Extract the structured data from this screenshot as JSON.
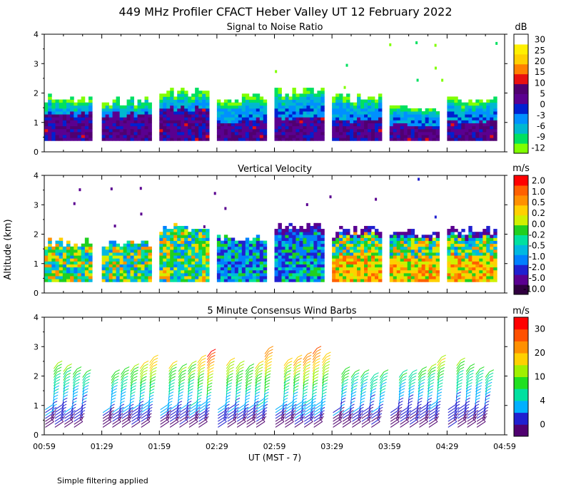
{
  "title": "449 MHz Profiler CFACT Heber Valley UT 12 February 2022",
  "footnote": "Simple filtering applied",
  "y_axis_label": "Altitude (km)",
  "x_axis_label": "UT  (MST - 7)",
  "x_tick_labels": [
    "00:59",
    "01:29",
    "01:59",
    "02:29",
    "02:59",
    "03:29",
    "03:59",
    "04:29",
    "04:59"
  ],
  "colors": {
    "snr": [
      "#80ff00",
      "#00e060",
      "#00b8d0",
      "#0090ff",
      "#0020d0",
      "#5a0090",
      "#500070",
      "#e81010",
      "#ff8000",
      "#ffd000",
      "#fff000",
      "#ffffff"
    ],
    "velocity": [
      "#300040",
      "#5a0090",
      "#2020d0",
      "#0080ff",
      "#00b8e0",
      "#00e0a0",
      "#20d020",
      "#d0f000",
      "#ffd000",
      "#ff9000",
      "#ff6000",
      "#ff0000"
    ],
    "wind": [
      "#500070",
      "#2020d0",
      "#00b0ff",
      "#00e0a0",
      "#20e020",
      "#a0f000",
      "#ffd000",
      "#ff9000",
      "#ff5000",
      "#ff0000"
    ]
  },
  "chart_data": [
    {
      "name": "snr",
      "type": "heatmap",
      "title": "Signal to Noise Ratio",
      "ylabel": "Altitude (km)",
      "ylim": [
        0,
        4
      ],
      "y_ticks": [
        0,
        1,
        2,
        3,
        4
      ],
      "x_range_minutes": [
        0,
        240
      ],
      "colorbar_unit": "dB",
      "colorbar_labels": [
        "30",
        "25",
        "20",
        "15",
        "10",
        "5",
        "0",
        "-3",
        "-6",
        "-9",
        "-12"
      ],
      "blocks": [
        {
          "start_min": 0,
          "end_min": 25,
          "top_km": 1.75
        },
        {
          "start_min": 30,
          "end_min": 56,
          "top_km": 1.7
        },
        {
          "start_min": 60,
          "end_min": 86,
          "top_km": 2.0
        },
        {
          "start_min": 90,
          "end_min": 116,
          "top_km": 1.8
        },
        {
          "start_min": 120,
          "end_min": 146,
          "top_km": 2.0
        },
        {
          "start_min": 150,
          "end_min": 176,
          "top_km": 1.8
        },
        {
          "start_min": 180,
          "end_min": 206,
          "top_km": 1.5
        },
        {
          "start_min": 210,
          "end_min": 236,
          "top_km": 1.75
        }
      ]
    },
    {
      "name": "velocity",
      "type": "heatmap",
      "title": "Vertical Velocity",
      "ylabel": "Altitude (km)",
      "ylim": [
        0,
        4
      ],
      "y_ticks": [
        0,
        1,
        2,
        3,
        4
      ],
      "x_range_minutes": [
        0,
        240
      ],
      "colorbar_unit": "m/s",
      "colorbar_labels": [
        "2.0",
        "1.0",
        "0.5",
        "0.2",
        "0.0",
        "-0.2",
        "-0.5",
        "-1.0",
        "-2.0",
        "-5.0",
        "-10.0"
      ],
      "blocks": [
        {
          "start_min": 0,
          "end_min": 25,
          "top_km": 1.7
        },
        {
          "start_min": 30,
          "end_min": 56,
          "top_km": 1.65
        },
        {
          "start_min": 60,
          "end_min": 86,
          "top_km": 2.2
        },
        {
          "start_min": 90,
          "end_min": 116,
          "top_km": 1.8
        },
        {
          "start_min": 120,
          "end_min": 146,
          "top_km": 2.2
        },
        {
          "start_min": 150,
          "end_min": 176,
          "top_km": 2.1
        },
        {
          "start_min": 180,
          "end_min": 206,
          "top_km": 2.1
        },
        {
          "start_min": 210,
          "end_min": 236,
          "top_km": 2.1
        }
      ]
    },
    {
      "name": "wind",
      "type": "scatter",
      "title": "5 Minute Consensus Wind Barbs",
      "ylabel": "Altitude (km)",
      "ylim": [
        0,
        4
      ],
      "y_ticks": [
        0,
        1,
        2,
        3,
        4
      ],
      "x_range_minutes": [
        0,
        240
      ],
      "colorbar_unit": "m/s",
      "colorbar_labels": [
        "30",
        "20",
        "10",
        "4",
        "0"
      ],
      "barb_times_min": [
        5,
        10,
        15,
        20,
        35,
        40,
        45,
        50,
        55,
        65,
        70,
        75,
        80,
        85,
        95,
        100,
        105,
        110,
        115,
        125,
        130,
        135,
        140,
        145,
        155,
        160,
        165,
        170,
        175,
        185,
        190,
        195,
        200,
        205,
        215,
        220,
        225,
        230
      ],
      "barb_top_km": [
        2.3,
        2.2,
        2.1,
        2.0,
        2.0,
        2.1,
        2.2,
        2.3,
        2.5,
        2.3,
        2.2,
        2.3,
        2.5,
        2.7,
        2.4,
        2.3,
        2.2,
        2.3,
        2.8,
        2.4,
        2.5,
        2.6,
        2.8,
        2.6,
        2.1,
        2.0,
        2.0,
        1.9,
        2.0,
        2.0,
        2.0,
        2.1,
        2.2,
        2.5,
        2.4,
        2.2,
        2.1,
        2.0
      ],
      "barb_peak_speed_ms": [
        18,
        16,
        15,
        14,
        15,
        16,
        18,
        22,
        24,
        20,
        18,
        19,
        24,
        30,
        22,
        20,
        18,
        20,
        28,
        22,
        24,
        26,
        28,
        24,
        16,
        14,
        14,
        13,
        14,
        14,
        13,
        15,
        16,
        20,
        16,
        15,
        14,
        13
      ]
    }
  ]
}
